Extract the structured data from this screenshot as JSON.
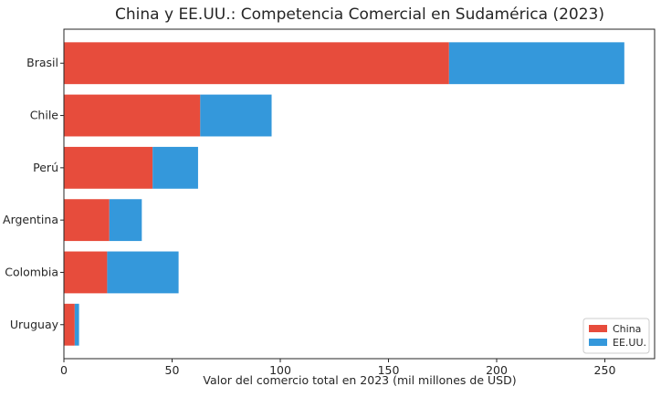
{
  "chart_data": {
    "type": "bar",
    "orientation": "horizontal",
    "stacked": true,
    "title": "China y EE.UU.: Competencia Comercial en Sudamérica (2023)",
    "xlabel": "Valor del comercio total en 2023 (mil millones de USD)",
    "ylabel": "",
    "categories": [
      "Brasil",
      "Chile",
      "Perú",
      "Argentina",
      "Colombia",
      "Uruguay"
    ],
    "series": [
      {
        "name": "China",
        "color": "#e74c3c",
        "values": [
          178,
          63,
          41,
          21,
          20,
          5
        ]
      },
      {
        "name": "EE.UU.",
        "color": "#3498db",
        "values": [
          81,
          33,
          21,
          15,
          33,
          2
        ]
      }
    ],
    "xlim": [
      0,
      273
    ],
    "xticks": [
      0,
      50,
      100,
      150,
      200,
      250
    ],
    "grid": false,
    "legend_position": "bottom-right"
  }
}
